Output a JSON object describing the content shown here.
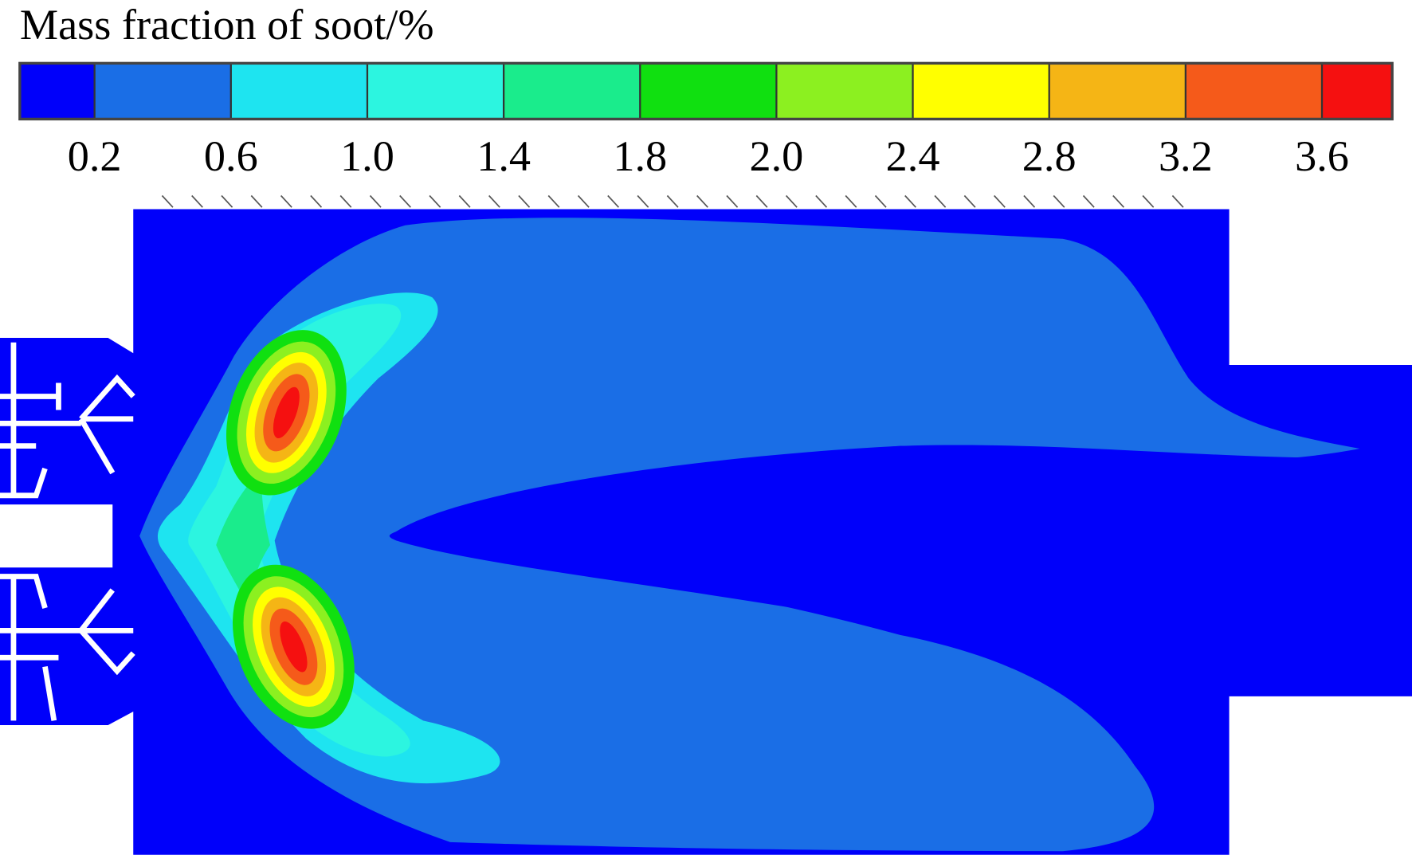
{
  "chart_data": {
    "type": "contour",
    "title": "Mass fraction of soot/%",
    "levels": [
      0.2,
      0.6,
      {
        "value": 1,
        "label": "1.0"
      },
      1.4,
      1.8,
      {
        "value": 2,
        "label": "2.0"
      },
      2.4,
      2.8,
      3.2,
      3.6
    ],
    "colors": [
      "#0000fa",
      "#1a6ee6",
      "#1ee4f0",
      "#2cf5e0",
      "#1aec8c",
      "#10e010",
      "#8cf020",
      "#ffff00",
      "#f5b515",
      "#f55a1a",
      "#f51010"
    ]
  }
}
